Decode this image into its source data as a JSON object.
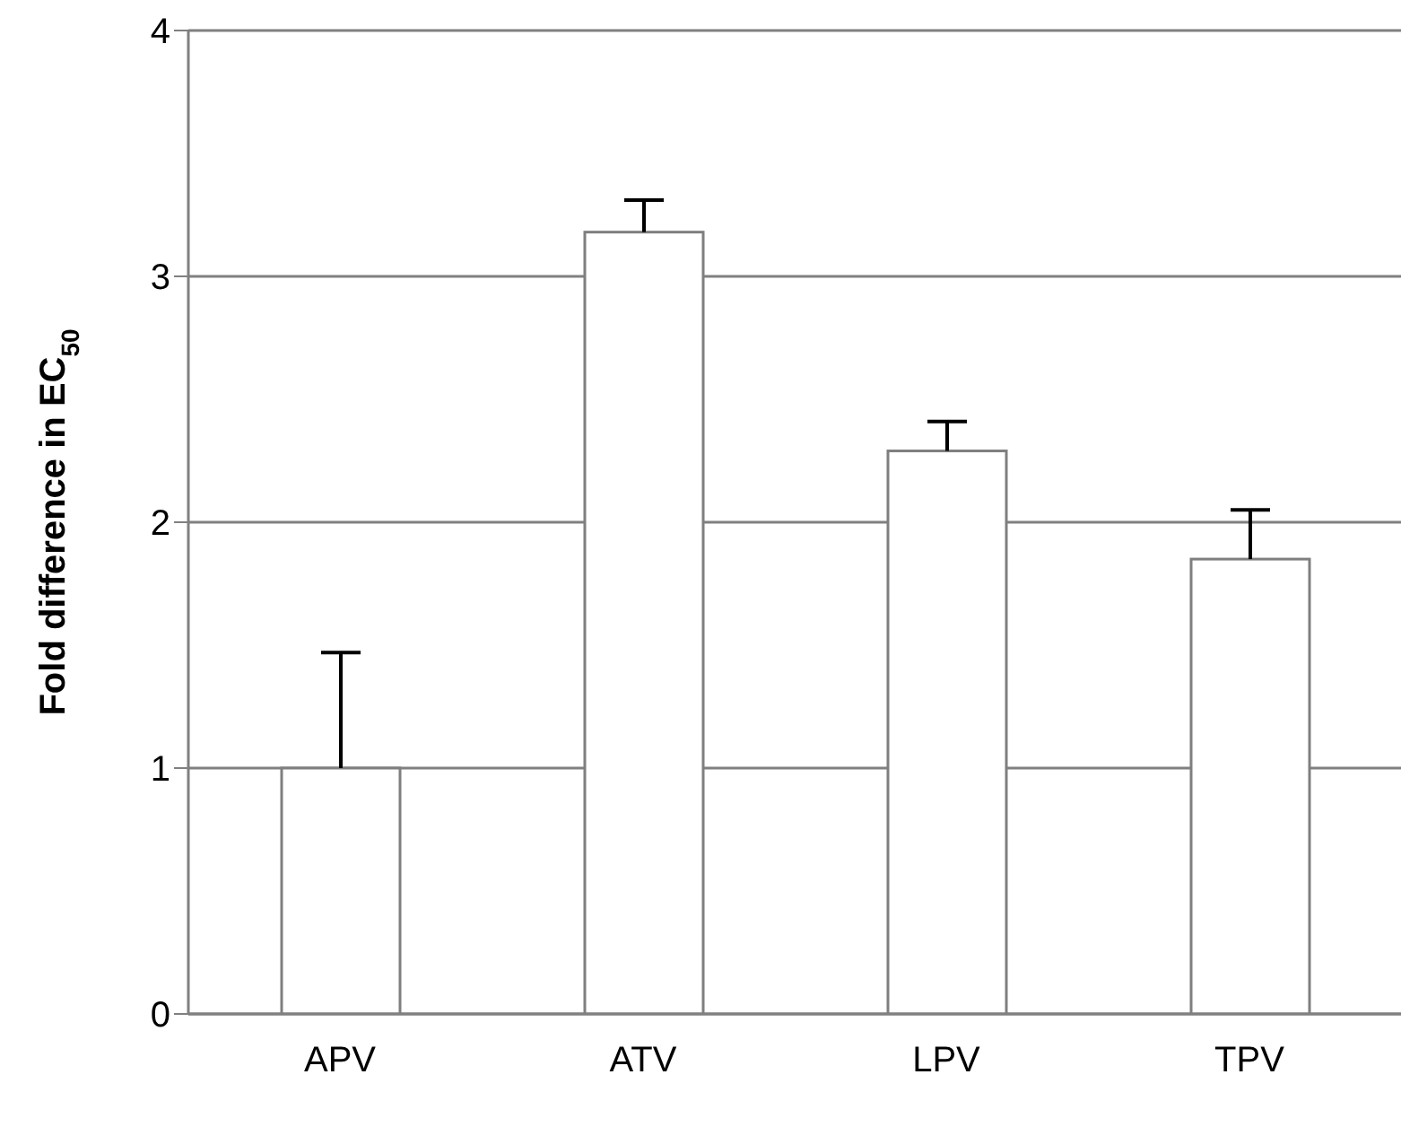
{
  "chart_data": {
    "type": "bar",
    "ylabel": "Fold difference in EC$_{50}$",
    "categories": [
      "APV",
      "ATV",
      "LPV",
      "TPV"
    ],
    "values": [
      1,
      3.18,
      2.29,
      1.85
    ],
    "errors": [
      [
        1,
        1.47
      ],
      [
        3.18,
        3.31
      ],
      [
        2.29,
        2.41
      ],
      [
        1.85,
        2.05
      ]
    ],
    "color": "#ffffff",
    "ylim": [
      0,
      4
    ],
    "yticks": [
      0,
      1,
      2,
      3,
      4
    ],
    "grid": "y"
  }
}
